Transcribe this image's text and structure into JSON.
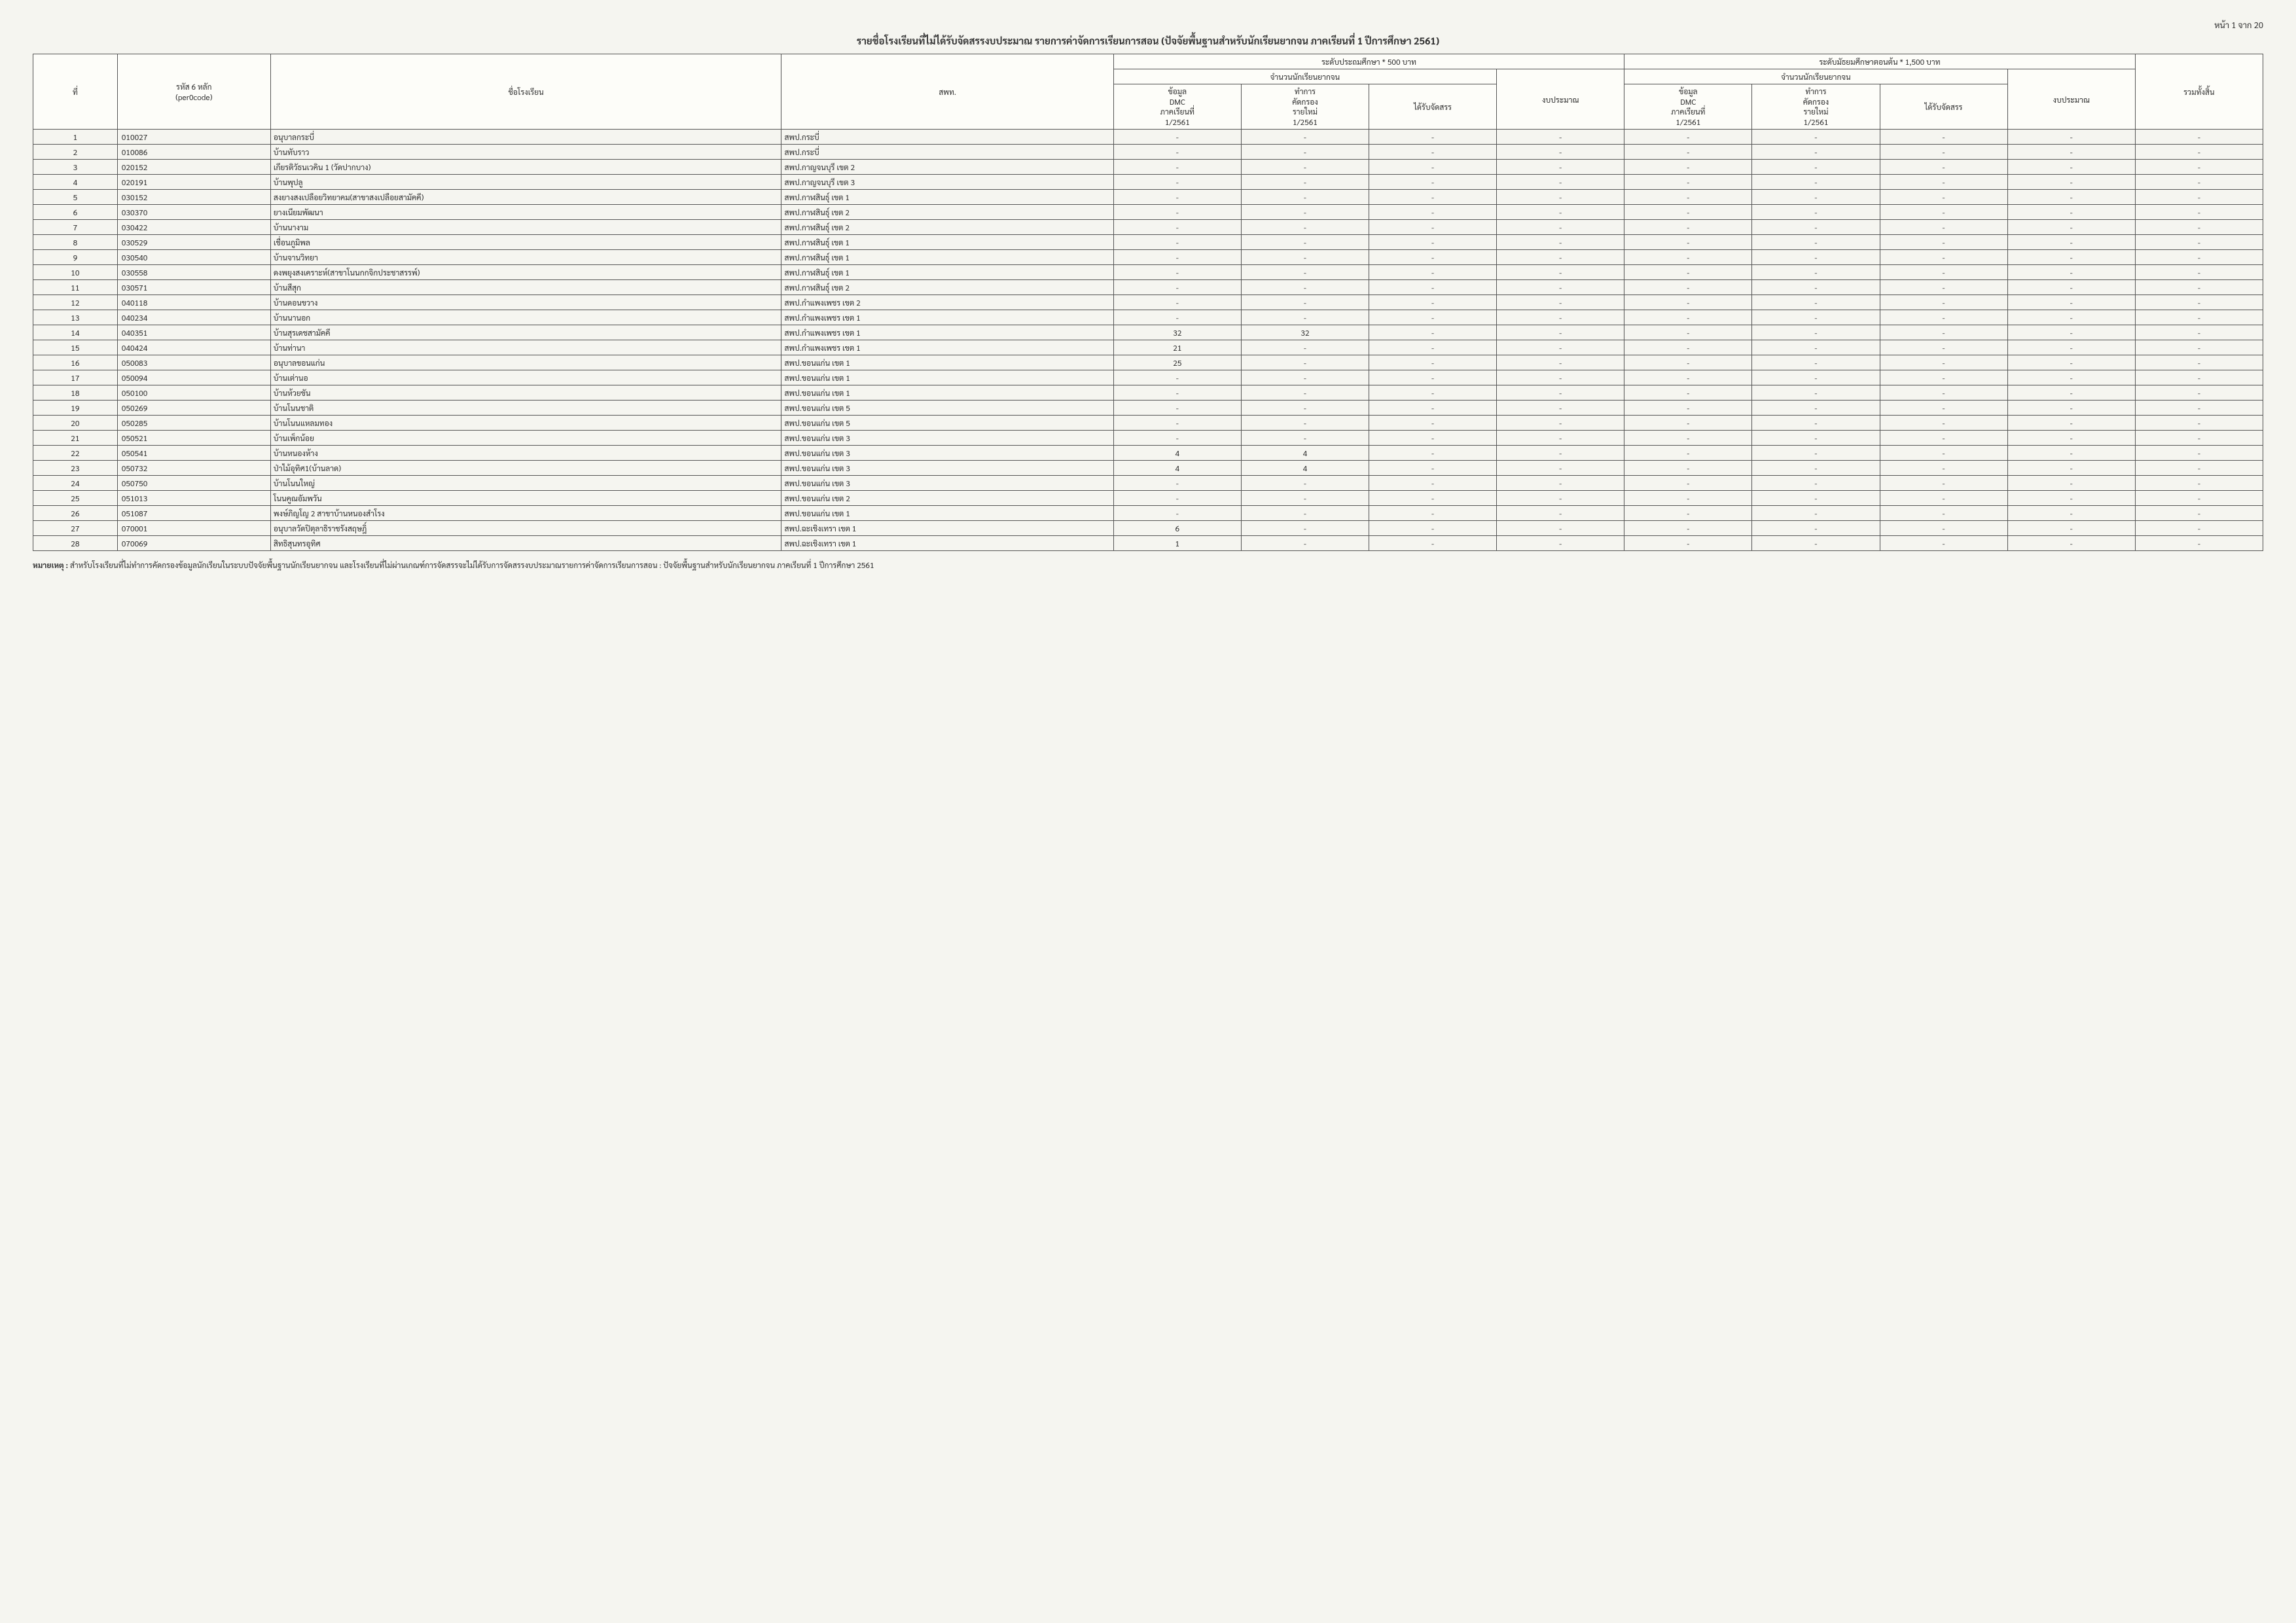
{
  "page_number": "หน้า 1 จาก 20",
  "title": "รายชื่อโรงเรียนที่ไม่ได้รับจัดสรรงบประมาณ รายการค่าจัดการเรียนการสอน (ปัจจัยพื้นฐานสำหรับนักเรียนยากจน ภาคเรียนที่ 1 ปีการศึกษา 2561)",
  "headers": {
    "idx": "ที่",
    "code": "รหัส 6 หลัก",
    "code_sub": "(per0code)",
    "school": "ชื่อโรงเรียน",
    "spt": "สพท.",
    "level1": "ระดับประถมศึกษา * 500 บาท",
    "level2": "ระดับมัธยมศึกษาตอนต้น * 1,500 บาท",
    "total": "รวมทั้งสิ้น",
    "poor_count": "จำนวนนักเรียนยากจน",
    "budget": "งบประมาณ",
    "dmc": "ข้อมูล",
    "dmc2": "DMC",
    "dmc3": "ภาคเรียนที่",
    "dmc4": "1/2561",
    "screen1": "ทำการ",
    "screen2": "คัดกรอง",
    "screen3": "รายใหม่",
    "screen4": "1/2561",
    "alloc": "ได้รับจัดสรร"
  },
  "rows": [
    {
      "i": 1,
      "code": "010027",
      "name": "อนุบาลกระบี่",
      "spt": "สพป.กระบี่",
      "v": [
        "-",
        "-",
        "-",
        "-",
        "-",
        "-",
        "-",
        "-",
        "-"
      ]
    },
    {
      "i": 2,
      "code": "010086",
      "name": "บ้านทับราว",
      "spt": "สพป.กระบี่",
      "v": [
        "-",
        "-",
        "-",
        "-",
        "-",
        "-",
        "-",
        "-",
        "-"
      ]
    },
    {
      "i": 3,
      "code": "020152",
      "name": "เกียรติวัธนเวคิน 1 (วัดปากบาง)",
      "spt": "สพป.กาญจนบุรี เขต 2",
      "v": [
        "-",
        "-",
        "-",
        "-",
        "-",
        "-",
        "-",
        "-",
        "-"
      ]
    },
    {
      "i": 4,
      "code": "020191",
      "name": "บ้านพุปลู",
      "spt": "สพป.กาญจนบุรี เขต 3",
      "v": [
        "-",
        "-",
        "-",
        "-",
        "-",
        "-",
        "-",
        "-",
        "-"
      ]
    },
    {
      "i": 5,
      "code": "030152",
      "name": "สงยางสงเปลือยวิทยาคม(สาขาสงเปลือยสามัคคี)",
      "spt": "สพป.กาฬสินธุ์ เขต 1",
      "v": [
        "-",
        "-",
        "-",
        "-",
        "-",
        "-",
        "-",
        "-",
        "-"
      ]
    },
    {
      "i": 6,
      "code": "030370",
      "name": "ยางเนียมพัฒนา",
      "spt": "สพป.กาฬสินธุ์ เขต 2",
      "v": [
        "-",
        "-",
        "-",
        "-",
        "-",
        "-",
        "-",
        "-",
        "-"
      ]
    },
    {
      "i": 7,
      "code": "030422",
      "name": "บ้านนางาม",
      "spt": "สพป.กาฬสินธุ์ เขต 2",
      "v": [
        "-",
        "-",
        "-",
        "-",
        "-",
        "-",
        "-",
        "-",
        "-"
      ]
    },
    {
      "i": 8,
      "code": "030529",
      "name": "เชื่อนภูมิพล",
      "spt": "สพป.กาฬสินธุ์ เขต 1",
      "v": [
        "-",
        "-",
        "-",
        "-",
        "-",
        "-",
        "-",
        "-",
        "-"
      ]
    },
    {
      "i": 9,
      "code": "030540",
      "name": "บ้านจานวิทยา",
      "spt": "สพป.กาฬสินธุ์ เขต 1",
      "v": [
        "-",
        "-",
        "-",
        "-",
        "-",
        "-",
        "-",
        "-",
        "-"
      ]
    },
    {
      "i": 10,
      "code": "030558",
      "name": "ดงพยุงสงเคราะห์(สาขาโนนกกจิกประชาสรรพ์)",
      "spt": "สพป.กาฬสินธุ์ เขต 1",
      "v": [
        "-",
        "-",
        "-",
        "-",
        "-",
        "-",
        "-",
        "-",
        "-"
      ]
    },
    {
      "i": 11,
      "code": "030571",
      "name": "บ้านสีสุก",
      "spt": "สพป.กาฬสินธุ์ เขต 2",
      "v": [
        "-",
        "-",
        "-",
        "-",
        "-",
        "-",
        "-",
        "-",
        "-"
      ]
    },
    {
      "i": 12,
      "code": "040118",
      "name": "บ้านดอนขวาง",
      "spt": "สพป.กำแพงเพชร เขต 2",
      "v": [
        "-",
        "-",
        "-",
        "-",
        "-",
        "-",
        "-",
        "-",
        "-"
      ]
    },
    {
      "i": 13,
      "code": "040234",
      "name": "บ้านนานอก",
      "spt": "สพป.กำแพงเพชร เขต 1",
      "v": [
        "-",
        "-",
        "-",
        "-",
        "-",
        "-",
        "-",
        "-",
        "-"
      ]
    },
    {
      "i": 14,
      "code": "040351",
      "name": "บ้านสุรเดชสามัคคี",
      "spt": "สพป.กำแพงเพชร เขต 1",
      "v": [
        "32",
        "32",
        "-",
        "-",
        "-",
        "-",
        "-",
        "-",
        "-"
      ]
    },
    {
      "i": 15,
      "code": "040424",
      "name": "บ้านท่านา",
      "spt": "สพป.กำแพงเพชร เขต 1",
      "v": [
        "21",
        "-",
        "-",
        "-",
        "-",
        "-",
        "-",
        "-",
        "-"
      ]
    },
    {
      "i": 16,
      "code": "050083",
      "name": "อนุบาลขอนแก่น",
      "spt": "สพป.ขอนแก่น เขต 1",
      "v": [
        "25",
        "-",
        "-",
        "-",
        "-",
        "-",
        "-",
        "-",
        "-"
      ]
    },
    {
      "i": 17,
      "code": "050094",
      "name": "บ้านเต่านอ",
      "spt": "สพป.ขอนแก่น เขต 1",
      "v": [
        "-",
        "-",
        "-",
        "-",
        "-",
        "-",
        "-",
        "-",
        "-"
      ]
    },
    {
      "i": 18,
      "code": "050100",
      "name": "บ้านห้วยขัน",
      "spt": "สพป.ขอนแก่น เขต 1",
      "v": [
        "-",
        "-",
        "-",
        "-",
        "-",
        "-",
        "-",
        "-",
        "-"
      ]
    },
    {
      "i": 19,
      "code": "050269",
      "name": "บ้านโนนชาติ",
      "spt": "สพป.ขอนแก่น เขต 5",
      "v": [
        "-",
        "-",
        "-",
        "-",
        "-",
        "-",
        "-",
        "-",
        "-"
      ]
    },
    {
      "i": 20,
      "code": "050285",
      "name": "บ้านโนนแหลมทอง",
      "spt": "สพป.ขอนแก่น เขต 5",
      "v": [
        "-",
        "-",
        "-",
        "-",
        "-",
        "-",
        "-",
        "-",
        "-"
      ]
    },
    {
      "i": 21,
      "code": "050521",
      "name": "บ้านเพ็กน้อย",
      "spt": "สพป.ขอนแก่น เขต 3",
      "v": [
        "-",
        "-",
        "-",
        "-",
        "-",
        "-",
        "-",
        "-",
        "-"
      ]
    },
    {
      "i": 22,
      "code": "050541",
      "name": "บ้านหนองห้าง",
      "spt": "สพป.ขอนแก่น เขต 3",
      "v": [
        "4",
        "4",
        "-",
        "-",
        "-",
        "-",
        "-",
        "-",
        "-"
      ]
    },
    {
      "i": 23,
      "code": "050732",
      "name": "ป่าไม้อุทิศ1(บ้านลาด)",
      "spt": "สพป.ขอนแก่น เขต 3",
      "v": [
        "4",
        "4",
        "-",
        "-",
        "-",
        "-",
        "-",
        "-",
        "-"
      ]
    },
    {
      "i": 24,
      "code": "050750",
      "name": "บ้านโนนใหญ่",
      "spt": "สพป.ขอนแก่น เขต 3",
      "v": [
        "-",
        "-",
        "-",
        "-",
        "-",
        "-",
        "-",
        "-",
        "-"
      ]
    },
    {
      "i": 25,
      "code": "051013",
      "name": "โนนคูณอัมพวัน",
      "spt": "สพป.ขอนแก่น เขต 2",
      "v": [
        "-",
        "-",
        "-",
        "-",
        "-",
        "-",
        "-",
        "-",
        "-"
      ]
    },
    {
      "i": 26,
      "code": "051087",
      "name": "พงษ์ภิญโญ 2 สาขาบ้านหนองสำโรง",
      "spt": "สพป.ขอนแก่น เขต 1",
      "v": [
        "-",
        "-",
        "-",
        "-",
        "-",
        "-",
        "-",
        "-",
        "-"
      ]
    },
    {
      "i": 27,
      "code": "070001",
      "name": "อนุบาลวัดปิตุลาธิราชรังสฤษฎิ์",
      "spt": "สพป.ฉะเชิงเทรา เขต 1",
      "v": [
        "6",
        "-",
        "-",
        "-",
        "-",
        "-",
        "-",
        "-",
        "-"
      ]
    },
    {
      "i": 28,
      "code": "070069",
      "name": "สิทธิสุนทรอุทิศ",
      "spt": "สพป.ฉะเชิงเทรา เขต 1",
      "v": [
        "1",
        "-",
        "-",
        "-",
        "-",
        "-",
        "-",
        "-",
        "-"
      ]
    }
  ],
  "note_label": "หมายเหตุ :",
  "note": "สำหรับโรงเรียนที่ไม่ทำการคัดกรองข้อมูลนักเรียนในระบบปัจจัยพื้นฐานนักเรียนยากจน และโรงเรียนที่ไม่ผ่านเกณฑ์การจัดสรรจะไม่ได้รับการจัดสรรงบประมาณรายการค่าจัดการเรียนการสอน : ปัจจัยพื้นฐานสำหรับนักเรียนยากจน ภาคเรียนที่ 1 ปีการศึกษา 2561",
  "colors": {
    "border": "#555555",
    "bg": "#f5f5f0",
    "text": "#333333"
  }
}
